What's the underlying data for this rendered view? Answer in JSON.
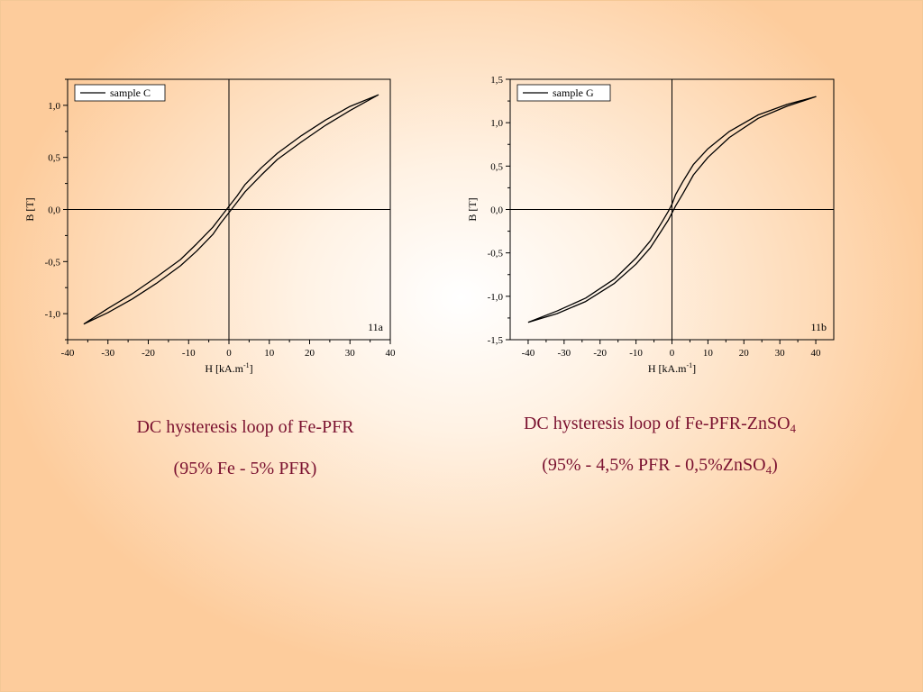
{
  "charts": {
    "chart_a": {
      "caption_line1": "DC hysteresis loop of Fe-PFR",
      "caption_line2": "(95% Fe - 5% PFR)"
    },
    "chart_b": {
      "caption_line1_main": "DC hysteresis loop of Fe-PFR-ZnSO",
      "caption_line1_sub": "4",
      "caption_line2_main": "(95% - 4,5% PFR - 0,5%ZnSO",
      "caption_line2_sub": "4",
      "caption_line2_end": ")"
    }
  },
  "chart_data": [
    {
      "type": "line",
      "panel_label": "11a",
      "xlabel_main": "H [kA.m",
      "xlabel_sup": "-1",
      "xlabel_end": "]",
      "ylabel": "B [T]",
      "xlim": [
        -40,
        40
      ],
      "ylim": [
        -1.25,
        1.25
      ],
      "x_ticks": [
        "-40",
        "-30",
        "-20",
        "-10",
        "0",
        "10",
        "20",
        "30",
        "40"
      ],
      "x_tick_values": [
        -40,
        -30,
        -20,
        -10,
        0,
        10,
        20,
        30,
        40
      ],
      "y_ticks": [
        "-1,0",
        "-0,5",
        "0,0",
        "0,5",
        "1,0"
      ],
      "y_tick_values": [
        -1.0,
        -0.5,
        0.0,
        0.5,
        1.0
      ],
      "legend_position": "top-left",
      "series": [
        {
          "name": "sample C",
          "color": "#000000",
          "x": [
            -36,
            -30,
            -24,
            -18,
            -12,
            -8,
            -4,
            -2,
            0,
            2,
            4,
            8,
            12,
            18,
            24,
            30,
            37,
            30,
            24,
            18,
            12,
            8,
            4,
            2,
            0,
            -2,
            -4,
            -8,
            -12,
            -18,
            -24,
            -30,
            -36
          ],
          "y": [
            -1.1,
            -0.99,
            -0.86,
            -0.71,
            -0.54,
            -0.4,
            -0.24,
            -0.13,
            -0.03,
            0.07,
            0.17,
            0.33,
            0.48,
            0.65,
            0.81,
            0.95,
            1.1,
            0.99,
            0.86,
            0.71,
            0.54,
            0.4,
            0.24,
            0.13,
            0.03,
            -0.07,
            -0.17,
            -0.33,
            -0.48,
            -0.65,
            -0.81,
            -0.95,
            -1.1
          ]
        }
      ]
    },
    {
      "type": "line",
      "panel_label": "11b",
      "xlabel_main": "H [kA.m",
      "xlabel_sup": "-1",
      "xlabel_end": "]",
      "ylabel": "B [T]",
      "xlim": [
        -45,
        45
      ],
      "ylim": [
        -1.5,
        1.5
      ],
      "x_ticks": [
        "-40",
        "-30",
        "-20",
        "-10",
        "0",
        "10",
        "20",
        "30",
        "40"
      ],
      "x_tick_values": [
        -40,
        -30,
        -20,
        -10,
        0,
        10,
        20,
        30,
        40
      ],
      "y_ticks": [
        "-1,5",
        "-1,0",
        "-0,5",
        "0,0",
        "0,5",
        "1,0",
        "1,5"
      ],
      "y_tick_values": [
        -1.5,
        -1.0,
        -0.5,
        0.0,
        0.5,
        1.0,
        1.5
      ],
      "legend_position": "top-left",
      "series": [
        {
          "name": "sample G",
          "color": "#000000",
          "x": [
            -40,
            -32,
            -24,
            -16,
            -10,
            -6,
            -3,
            -1,
            0,
            1,
            3,
            6,
            10,
            16,
            24,
            32,
            40,
            32,
            24,
            16,
            10,
            6,
            3,
            1,
            0,
            -1,
            -3,
            -6,
            -10,
            -16,
            -24,
            -32,
            -40
          ],
          "y": [
            -1.3,
            -1.2,
            -1.06,
            -0.85,
            -0.63,
            -0.44,
            -0.25,
            -0.12,
            -0.04,
            0.04,
            0.18,
            0.4,
            0.6,
            0.83,
            1.05,
            1.19,
            1.3,
            1.21,
            1.09,
            0.9,
            0.7,
            0.52,
            0.32,
            0.17,
            0.06,
            -0.02,
            -0.16,
            -0.36,
            -0.56,
            -0.8,
            -1.02,
            -1.17,
            -1.3
          ]
        }
      ]
    }
  ]
}
